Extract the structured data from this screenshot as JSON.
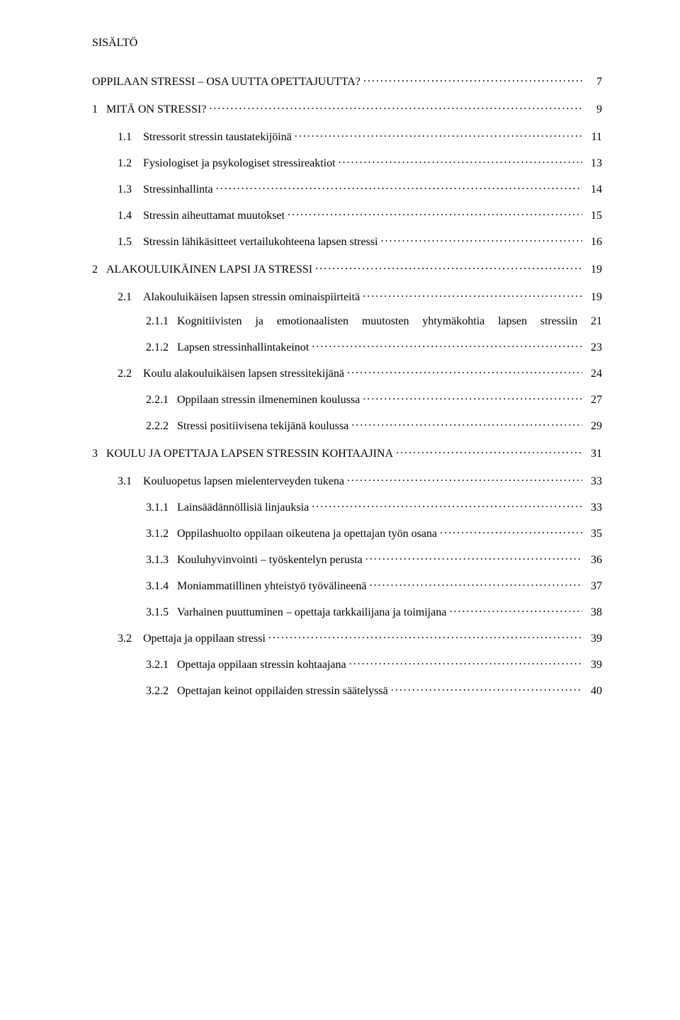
{
  "heading": "SISÄLTÖ",
  "toc": [
    {
      "level": 0,
      "num": "",
      "title": "OPPILAAN STRESSI – OSA UUTTA OPETTAJUUTTA?",
      "page": "7",
      "gap_after": "med"
    },
    {
      "level": 1,
      "num": "1",
      "title": "MITÄ ON STRESSI?",
      "page": "9",
      "gap_after": "med"
    },
    {
      "level": 2,
      "num": "1.1",
      "title": "Stressorit stressin taustatekijöinä",
      "page": "11",
      "gap_after": "small"
    },
    {
      "level": 2,
      "num": "1.2",
      "title": "Fysiologiset ja psykologiset stressireaktiot",
      "page": "13",
      "gap_after": "small"
    },
    {
      "level": 2,
      "num": "1.3",
      "title": "Stressinhallinta",
      "page": "14",
      "gap_after": "small"
    },
    {
      "level": 2,
      "num": "1.4",
      "title": "Stressin aiheuttamat muutokset",
      "page": "15",
      "gap_after": "small"
    },
    {
      "level": 2,
      "num": "1.5",
      "title": "Stressin lähikäsitteet vertailukohteena lapsen stressi",
      "page": "16",
      "gap_after": "med"
    },
    {
      "level": 1,
      "num": "2",
      "title": "ALAKOULUIKÄINEN LAPSI JA STRESSI",
      "page": "19",
      "gap_after": "med"
    },
    {
      "level": 2,
      "num": "2.1",
      "title": "Alakouluikäisen lapsen stressin ominaispiirteitä",
      "page": "19",
      "gap_after": "small"
    },
    {
      "level": 3,
      "num": "2.1.1",
      "title": "Kognitiivisten ja emotionaalisten muutosten yhtymäkohtia lapsen stressiin",
      "page": "21",
      "gap_after": "small",
      "wrap": true,
      "line1": "Kognitiivisten ja emotionaalisten muutosten yhtymäkohtia lapsen stressiin 21"
    },
    {
      "level": 3,
      "num": "2.1.2",
      "title": "Lapsen stressinhallintakeinot",
      "page": "23",
      "gap_after": "small"
    },
    {
      "level": 2,
      "num": "2.2",
      "title": "Koulu alakouluikäisen lapsen stressitekijänä",
      "page": "24",
      "gap_after": "small"
    },
    {
      "level": 3,
      "num": "2.2.1",
      "title": "Oppilaan stressin ilmeneminen koulussa",
      "page": "27",
      "gap_after": "small"
    },
    {
      "level": 3,
      "num": "2.2.2",
      "title": "Stressi positiivisena tekijänä koulussa",
      "page": "29",
      "gap_after": "med"
    },
    {
      "level": 1,
      "num": "3",
      "title": "KOULU JA OPETTAJA LAPSEN STRESSIN KOHTAAJINA",
      "page": "31",
      "gap_after": "med"
    },
    {
      "level": 2,
      "num": "3.1",
      "title": "Kouluopetus lapsen mielenterveyden tukena",
      "page": "33",
      "gap_after": "small"
    },
    {
      "level": 3,
      "num": "3.1.1",
      "title": "Lainsäädännöllisiä linjauksia",
      "page": "33",
      "gap_after": "small"
    },
    {
      "level": 3,
      "num": "3.1.2",
      "title": "Oppilashuolto oppilaan oikeutena ja opettajan työn osana",
      "page": "35",
      "gap_after": "small"
    },
    {
      "level": 3,
      "num": "3.1.3",
      "title": "Kouluhyvinvointi – työskentelyn perusta",
      "page": "36",
      "gap_after": "small"
    },
    {
      "level": 3,
      "num": "3.1.4",
      "title": "Moniammatillinen yhteistyö työvälineenä",
      "page": "37",
      "gap_after": "small"
    },
    {
      "level": 3,
      "num": "3.1.5",
      "title": "Varhainen puuttuminen – opettaja tarkkailijana ja toimijana",
      "page": "38",
      "gap_after": "small"
    },
    {
      "level": 2,
      "num": "3.2",
      "title": "Opettaja ja oppilaan stressi",
      "page": "39",
      "gap_after": "small"
    },
    {
      "level": 3,
      "num": "3.2.1",
      "title": "Opettaja oppilaan stressin kohtaajana",
      "page": "39",
      "gap_after": "small"
    },
    {
      "level": 3,
      "num": "3.2.2",
      "title": "Opettajan keinot oppilaiden stressin säätelyssä",
      "page": "40",
      "gap_after": "none"
    }
  ]
}
